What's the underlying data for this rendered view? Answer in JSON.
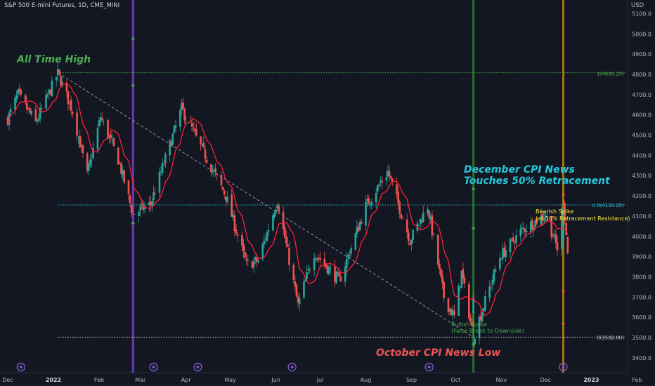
{
  "header": {
    "symbol_line": "S&P 500 E-mini Futures, 1D, CME_MINI",
    "currency": "USD"
  },
  "colors": {
    "background": "#131722",
    "up": "#26a69a",
    "down": "#ef5350",
    "ma": "#ff1e3c",
    "fib": "#26c6da",
    "ath": "#4caf50",
    "trend": "#b0b3bb",
    "purple": "#7b3fc8",
    "green_line": "#2e7d32",
    "gold_line": "#b8860b",
    "cyan_text": "#26c6da",
    "red_text": "#ef5350",
    "green_text": "#4caf50",
    "yellow_text": "#ffeb3b"
  },
  "annotations": {
    "ath": "All Time High",
    "dec1": "December CPI News",
    "dec2": "Touches 50% Retracement",
    "oct": "October CPI News Low",
    "bear1": "Bearish Spike",
    "bear2": "(at 50% Retracement Resistance)",
    "bull1": "Bullish Spike",
    "bull2": "(False Break to Downside)"
  },
  "chart_data": {
    "type": "candlestick",
    "y_axis_ticks": [
      3400,
      3500,
      3600,
      3700,
      3800,
      3900,
      4000,
      4100,
      4200,
      4300,
      4400,
      4500,
      4600,
      4700,
      4800,
      4900,
      5000,
      5100
    ],
    "x_axis_labels": [
      "Dec",
      "2022",
      "Feb",
      "Mar",
      "Apr",
      "May",
      "Jun",
      "Jul",
      "Aug",
      "Sep",
      "Oct",
      "Nov",
      "Dec",
      "2023",
      "Feb"
    ],
    "levels": [
      {
        "label": "1(4808.25)",
        "value": 4808.25
      },
      {
        "label": "0.5(4155.25)",
        "value": 4155.25
      },
      {
        "label": "0(3502.00)",
        "value": 3502.0
      }
    ],
    "price_path": [
      [
        "2021-12-01",
        4580
      ],
      [
        "2021-12-08",
        4700
      ],
      [
        "2021-12-20",
        4560
      ],
      [
        "2022-01-04",
        4805
      ],
      [
        "2022-01-14",
        4620
      ],
      [
        "2022-01-24",
        4300
      ],
      [
        "2022-02-02",
        4590
      ],
      [
        "2022-02-14",
        4380
      ],
      [
        "2022-02-24",
        4110
      ],
      [
        "2022-03-08",
        4160
      ],
      [
        "2022-03-29",
        4630
      ],
      [
        "2022-04-14",
        4400
      ],
      [
        "2022-04-28",
        4200
      ],
      [
        "2022-05-12",
        3860
      ],
      [
        "2022-05-20",
        3880
      ],
      [
        "2022-06-02",
        4180
      ],
      [
        "2022-06-16",
        3660
      ],
      [
        "2022-06-27",
        3920
      ],
      [
        "2022-07-14",
        3780
      ],
      [
        "2022-08-01",
        4150
      ],
      [
        "2022-08-16",
        4320
      ],
      [
        "2022-08-31",
        3980
      ],
      [
        "2022-09-12",
        4150
      ],
      [
        "2022-09-23",
        3700
      ],
      [
        "2022-09-30",
        3600
      ],
      [
        "2022-10-05",
        3820
      ],
      [
        "2022-10-13",
        3502
      ],
      [
        "2022-10-31",
        3900
      ],
      [
        "2022-11-15",
        4030
      ],
      [
        "2022-12-01",
        4110
      ],
      [
        "2022-12-09",
        3940
      ],
      [
        "2022-12-13",
        4185
      ],
      [
        "2022-12-16",
        3920
      ]
    ],
    "vertical_markers": [
      "2022-02-24",
      "2022-10-13",
      "2022-12-13"
    ],
    "trendline": [
      [
        "2022-01-04",
        4808.25
      ],
      [
        "2022-10-13",
        3502
      ]
    ]
  }
}
